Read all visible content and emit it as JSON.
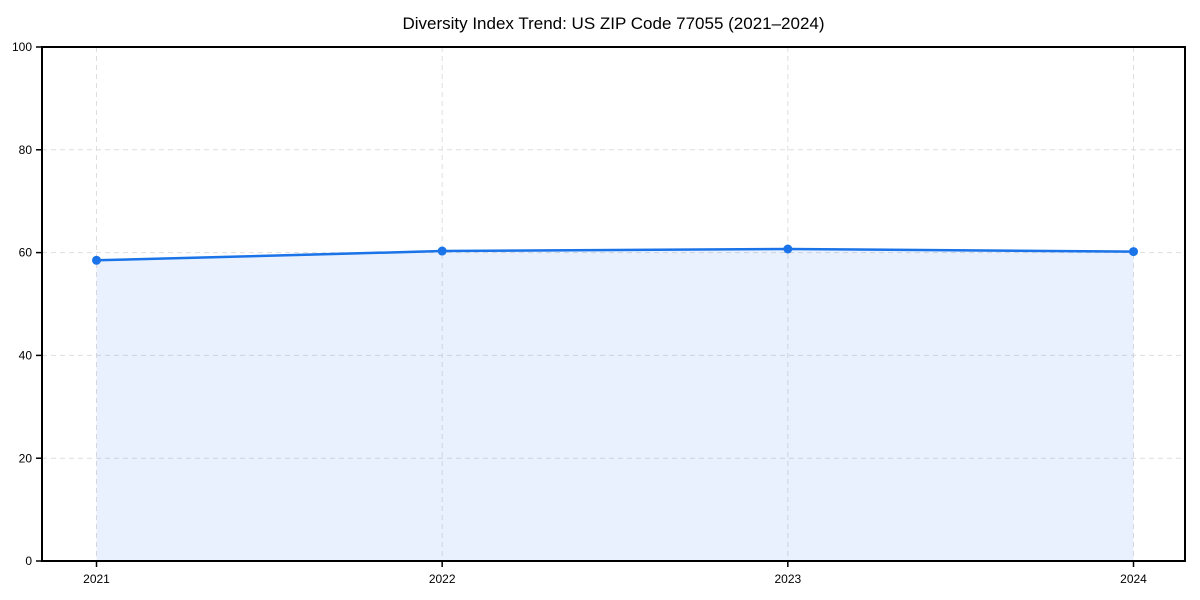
{
  "chart_data": {
    "type": "area",
    "title": "Diversity Index Trend: US ZIP Code 77055 (2021–2024)",
    "x": [
      "2021",
      "2022",
      "2023",
      "2024"
    ],
    "series": [
      {
        "name": "Diversity Index",
        "values": [
          58.5,
          60.3,
          60.7,
          60.2
        ]
      }
    ],
    "xlabel": "",
    "ylabel": "",
    "ylim": [
      0,
      100
    ],
    "yticks": [
      0,
      20,
      40,
      60,
      80,
      100
    ],
    "grid": true,
    "grid_style": "dashed",
    "legend": "none",
    "colors": {
      "line": "#1a73e8",
      "marker": "#1a73e8",
      "area_fill": "rgba(26,115,232,0.10)",
      "grid": "#dedede",
      "spine": "#000000",
      "text": "#000000",
      "background": "#ffffff"
    }
  }
}
